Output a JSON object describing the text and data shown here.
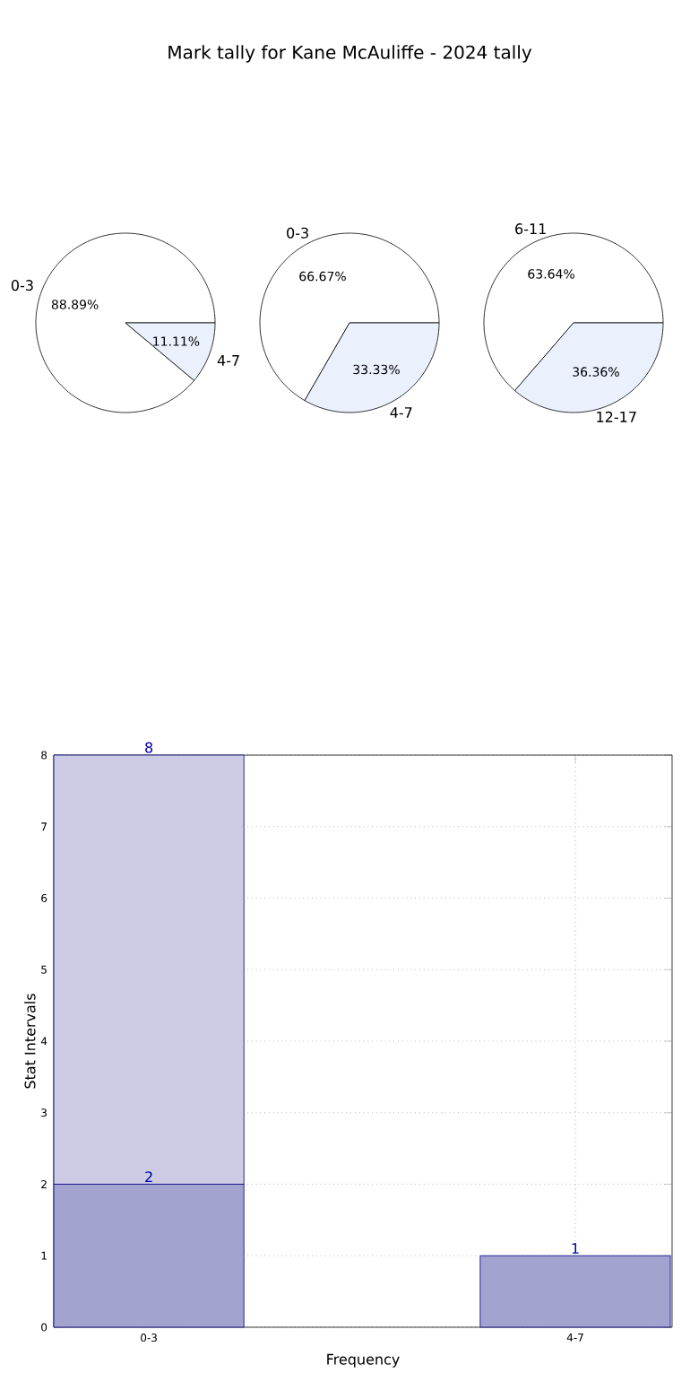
{
  "chart_data": [
    {
      "type": "pie",
      "title": "Mark tally for Kane McAuliffe - 2024 tally",
      "categories": [
        "0-3",
        "4-7"
      ],
      "values": [
        88.89,
        11.11
      ],
      "colors": [
        "#ffffff",
        "#eaf0fc"
      ],
      "value_labels": [
        "88.89%",
        "11.11%"
      ]
    },
    {
      "type": "pie",
      "categories": [
        "0-3",
        "4-7"
      ],
      "values": [
        66.67,
        33.33
      ],
      "colors": [
        "#ffffff",
        "#eaf0fc"
      ],
      "value_labels": [
        "66.67%",
        "33.33%"
      ]
    },
    {
      "type": "pie",
      "categories": [
        "6-11",
        "12-17"
      ],
      "values": [
        63.64,
        36.36
      ],
      "colors": [
        "#ffffff",
        "#eaf0fc"
      ],
      "value_labels": [
        "63.64%",
        "36.36%"
      ]
    },
    {
      "type": "bar",
      "categories": [
        "0-3",
        "4-7"
      ],
      "xlabel": "Frequency",
      "ylabel": "Stat Intervals",
      "ylim": [
        0,
        8
      ],
      "yticks": [
        0,
        1,
        2,
        3,
        4,
        5,
        6,
        7,
        8
      ],
      "grid": true,
      "stacked": true,
      "totals": [
        "8",
        null
      ],
      "series": [
        {
          "color": "#a3a3cf",
          "values": [
            2,
            1
          ],
          "value_labels": [
            "2",
            "1"
          ]
        },
        {
          "color": "#ccccE4",
          "values": [
            6,
            null
          ]
        }
      ]
    }
  ]
}
